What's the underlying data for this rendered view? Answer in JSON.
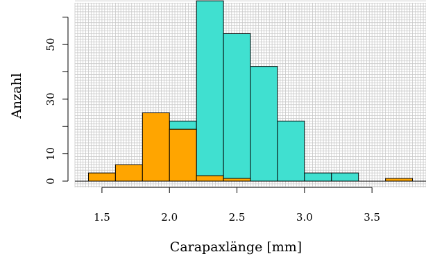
{
  "chart_data": {
    "type": "bar",
    "title": "",
    "xlabel": "Carapaxlänge [mm]",
    "ylabel": "Anzahl",
    "bin_edges": [
      1.4,
      1.6,
      1.8,
      2.0,
      2.2,
      2.4,
      2.6,
      2.8,
      3.0,
      3.2,
      3.4,
      3.6,
      3.8
    ],
    "xlim": [
      1.3,
      3.9
    ],
    "ylim": [
      -2.3,
      66.3
    ],
    "x_ticks": [
      {
        "value": 1.5,
        "label": "1.5"
      },
      {
        "value": 2.0,
        "label": "2.0"
      },
      {
        "value": 2.5,
        "label": "2.5"
      },
      {
        "value": 3.0,
        "label": "3.0"
      },
      {
        "value": 3.5,
        "label": "3.5"
      }
    ],
    "y_ticks": [
      {
        "value": 0,
        "label": "0"
      },
      {
        "value": 10,
        "label": "10"
      },
      {
        "value": 30,
        "label": "30"
      },
      {
        "value": 50,
        "label": "50"
      }
    ],
    "y_tick_marks": [
      0,
      10,
      20,
      30,
      40,
      50,
      60
    ],
    "grid": true,
    "series": [
      {
        "color": "#40E0D0",
        "values": [
          0,
          0,
          0,
          22,
          66,
          54,
          42,
          22,
          3,
          3,
          0,
          0
        ]
      },
      {
        "color": "#FFA500",
        "values": [
          3,
          6,
          25,
          19,
          2,
          1,
          0,
          0,
          0,
          0,
          0,
          1
        ]
      }
    ]
  }
}
